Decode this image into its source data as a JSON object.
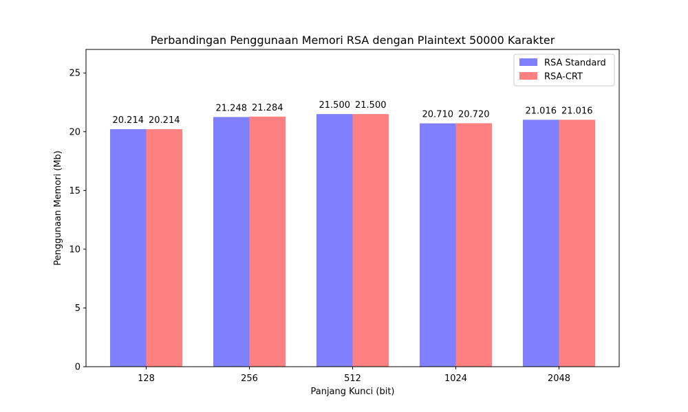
{
  "chart_data": {
    "type": "bar",
    "title": "Perbandingan Penggunaan Memori RSA dengan Plaintext 50000 Karakter",
    "xlabel": "Panjang Kunci (bit)",
    "ylabel": "Penggunaan Memori (Mb)",
    "categories": [
      "128",
      "256",
      "512",
      "1024",
      "2048"
    ],
    "series": [
      {
        "name": "RSA Standard",
        "color": "#8080ff",
        "values": [
          20.214,
          21.248,
          21.5,
          20.71,
          21.016
        ],
        "labels": [
          "20.214",
          "21.248",
          "21.500",
          "20.710",
          "21.016"
        ]
      },
      {
        "name": "RSA-CRT",
        "color": "#ff8080",
        "values": [
          20.214,
          21.284,
          21.5,
          20.72,
          21.016
        ],
        "labels": [
          "20.214",
          "21.284",
          "21.500",
          "20.720",
          "21.016"
        ]
      }
    ],
    "ylim": [
      0,
      27
    ],
    "yticks": [
      "0",
      "5",
      "10",
      "15",
      "20",
      "25"
    ],
    "grid": false,
    "legend_position": "top-right"
  }
}
